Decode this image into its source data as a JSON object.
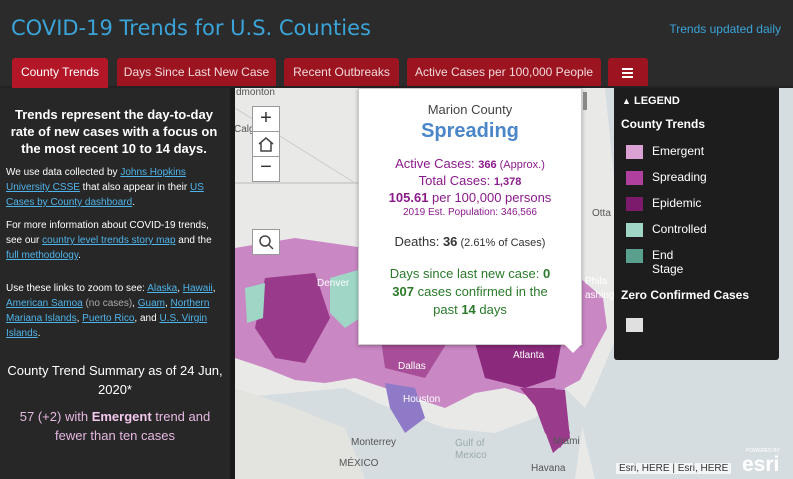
{
  "app": {
    "title": "COVID-19 Trends for U.S. Counties",
    "updated": "Trends updated daily",
    "accent_color": "#3aa4d8",
    "tab_color": "#b31626"
  },
  "tabs": [
    {
      "label": "County Trends",
      "active": true
    },
    {
      "label": "Days Since Last New Case",
      "active": false
    },
    {
      "label": "Recent Outbreaks",
      "active": false
    },
    {
      "label": "Active Cases per 100,000 People",
      "active": false
    },
    {
      "label": "",
      "icon": "menu-icon",
      "active": false
    }
  ],
  "sidebar": {
    "lead": "Trends represent the day-to-day rate of new cases with a focus on the most recent 10 to 14 days.",
    "p1": {
      "t1": "We use data collected by ",
      "l1": "Johns Hopkins University CSSE",
      "t2": " that also appear in their ",
      "l2": "US Cases by County dashboard",
      "t3": "."
    },
    "p2": {
      "t1": "For more information about COVID-19 trends, see our ",
      "l1": "country level trends story map",
      "t2": " and the ",
      "l2": "full methodology",
      "t3": "."
    },
    "p3": {
      "t1": "Use these links to zoom to see: ",
      "alaska": "Alaska",
      "hawaii": "Hawaii",
      "samoa": "American Samoa",
      "samoa_note": " (no cases)",
      "guam": "Guam",
      "nmi": "Northern Mariana Islands",
      "pr": "Puerto Rico",
      "and": "and",
      "usvi": "U.S. Virgin Islands"
    },
    "summary_title": "County Trend Summary as of 24 Jun, 2020*",
    "emergent_count": "57 (+2) with ",
    "emergent_word": "Emergent",
    "emergent_rest": " trend and fewer than ten cases"
  },
  "popup": {
    "county": "Marion County",
    "status": "Spreading",
    "active_label": "Active Cases: ",
    "active_value": "366",
    "active_note": " (Approx.)",
    "total_label": "Total Cases: ",
    "total_value": "1,378",
    "rate_value": "105.61",
    "rate_label": " per 100,000 persons",
    "pop_label": "2019 Est. Population: ",
    "pop_value": "346,566",
    "deaths_label": "Deaths: ",
    "deaths_value": "36",
    "deaths_pct": " (2.61% of Cases)",
    "days_label": "Days since last new case: ",
    "days_value": "0",
    "recent_value": "307",
    "recent_label": " cases confirmed in the",
    "past_label": "past ",
    "past_value": "14",
    "past_unit": " days"
  },
  "map_controls": {
    "zoom_in": "+",
    "home_icon": "home-icon",
    "zoom_out": "−",
    "search_icon": "search-icon"
  },
  "map_labels": {
    "edmonton": "dmonton",
    "calgary": "Calgary",
    "ottawa": "Otta",
    "denver": "Denver",
    "dallas": "Dallas",
    "atlanta": "Atlanta",
    "houston": "Houston",
    "philadelphia": "Phila",
    "washington": "ashing",
    "monterrey": "Monterrey",
    "miami": "Miami",
    "havana": "Havana",
    "mexico": "MÉXICO",
    "gulf1": "Gulf of",
    "gulf2": "Mexico"
  },
  "legend": {
    "title": "LEGEND",
    "section1": "County Trends",
    "items": [
      {
        "label": "Emergent",
        "color": "#dba0d4"
      },
      {
        "label": "Spreading",
        "color": "#b0409e"
      },
      {
        "label": "Epidemic",
        "color": "#7c1a6c"
      },
      {
        "label": "Controlled",
        "color": "#9fd6c6"
      },
      {
        "label": "End Stage",
        "color": "#5aa08e"
      }
    ],
    "section2": "Zero Confirmed Cases",
    "zero_color": "#e0e0e0"
  },
  "attribution": "Esri, HERE | Esri, HERE",
  "esri_logo": {
    "powered": "POWERED BY",
    "name": "esri"
  }
}
